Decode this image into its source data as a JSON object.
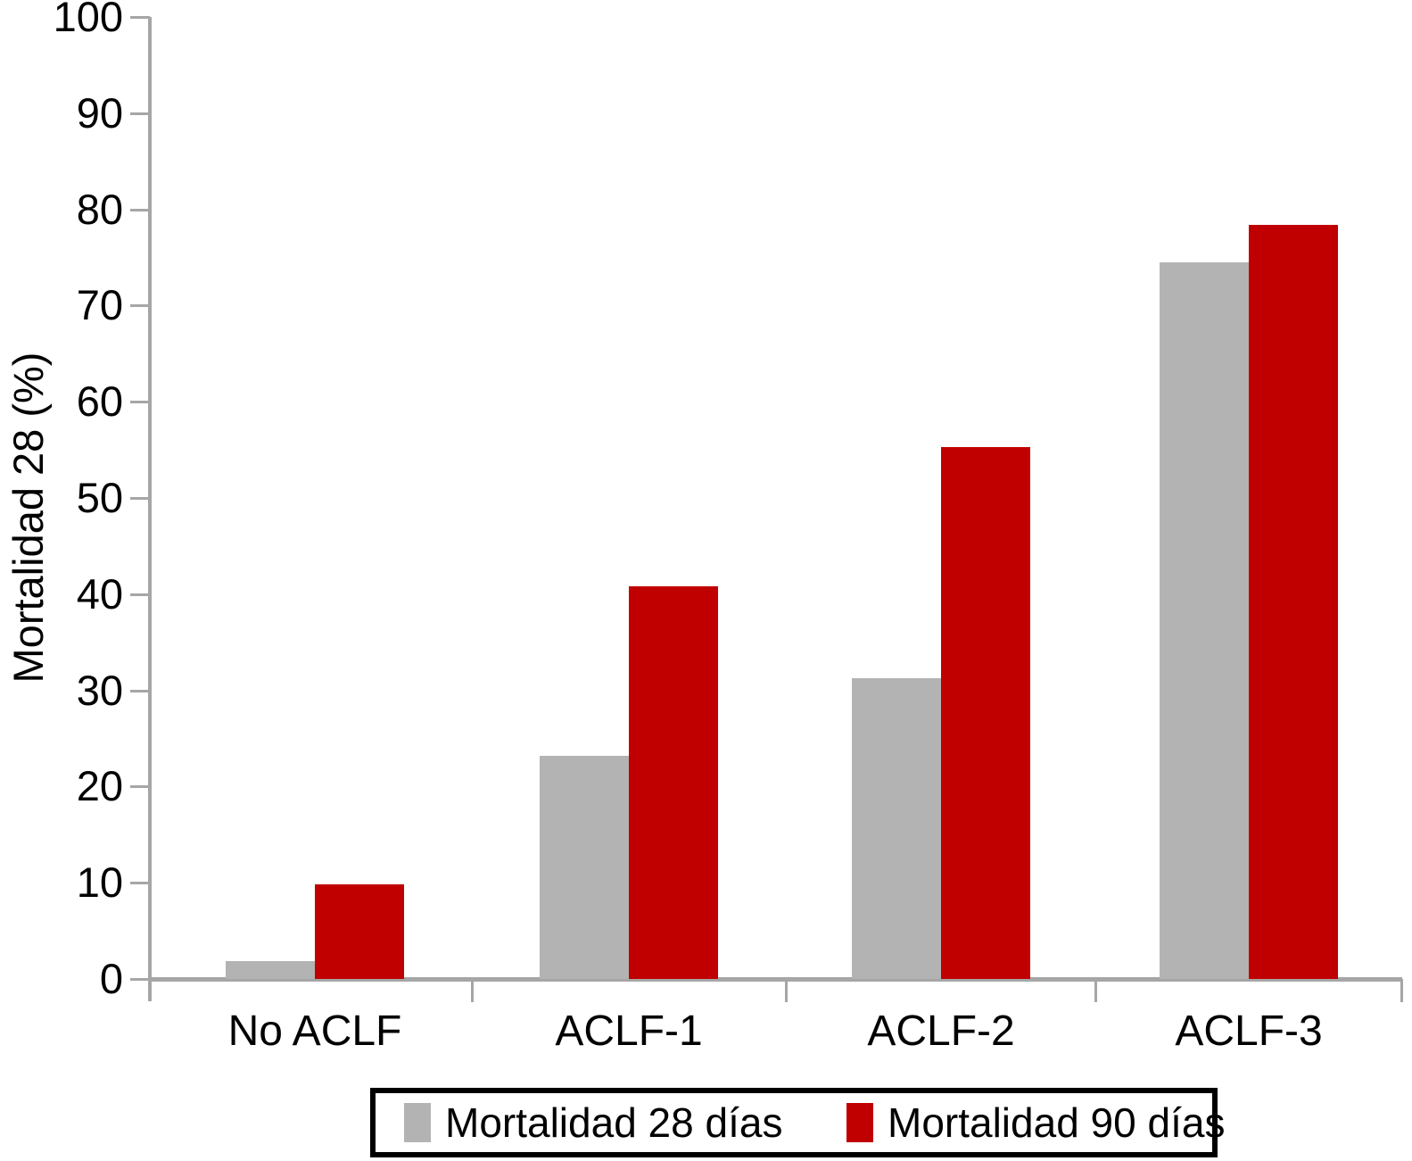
{
  "chart_data": {
    "type": "bar",
    "title": "",
    "ylabel": "Mortalidad 28 (%)",
    "xlabel": "",
    "categories": [
      "No ACLF",
      "ACLF-1",
      "ACLF-2",
      "ACLF-3"
    ],
    "series": [
      {
        "name": "Mortalidad 28 días",
        "color": "#b3b3b3",
        "values": [
          1.9,
          23.2,
          31.3,
          74.5
        ]
      },
      {
        "name": "Mortalidad 90 días",
        "color": "#c00000",
        "values": [
          9.8,
          40.8,
          55.3,
          78.4
        ]
      }
    ],
    "ylim": [
      0,
      100
    ],
    "yticks": [
      0,
      10,
      20,
      30,
      40,
      50,
      60,
      70,
      80,
      90,
      100
    ],
    "grid": false,
    "legend_position": "bottom",
    "value_unit": "%"
  },
  "colors": {
    "axis": "#a6a6a6",
    "text": "#000000",
    "legend_border": "#000000",
    "background": "#ffffff"
  }
}
